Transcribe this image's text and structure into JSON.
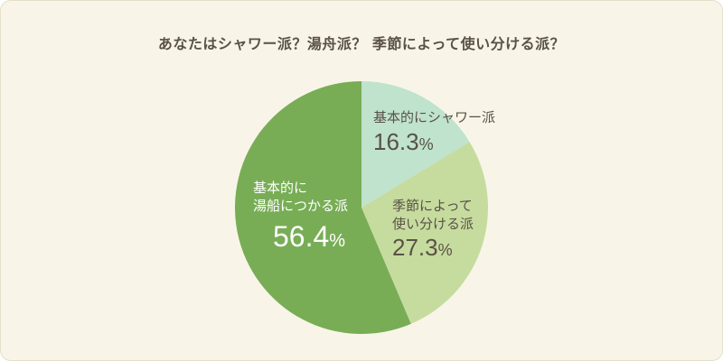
{
  "title": "あなたはシャワー派？湯舟派？ 季節によって使い分ける派？",
  "colors": {
    "background": "#f8f5e8",
    "shower": "#bfe3cc",
    "season": "#c6dc9e",
    "bath": "#78ad56"
  },
  "labels": {
    "shower": {
      "name": "基本的にシャワー派",
      "value": "16.3",
      "unit": "%"
    },
    "season": {
      "name": "季節によって\n使い分ける派",
      "value": "27.3",
      "unit": "%"
    },
    "bath": {
      "name": "基本的に\n湯船につかる派",
      "value": "56.4",
      "unit": "%"
    }
  },
  "chart_data": {
    "type": "pie",
    "title": "あなたはシャワー派？湯舟派？ 季節によって使い分ける派？",
    "categories": [
      "基本的にシャワー派",
      "季節によって使い分ける派",
      "基本的に湯船につかる派"
    ],
    "values": [
      16.3,
      27.3,
      56.4
    ],
    "unit": "%",
    "start": "12 o'clock",
    "direction": "clockwise"
  }
}
